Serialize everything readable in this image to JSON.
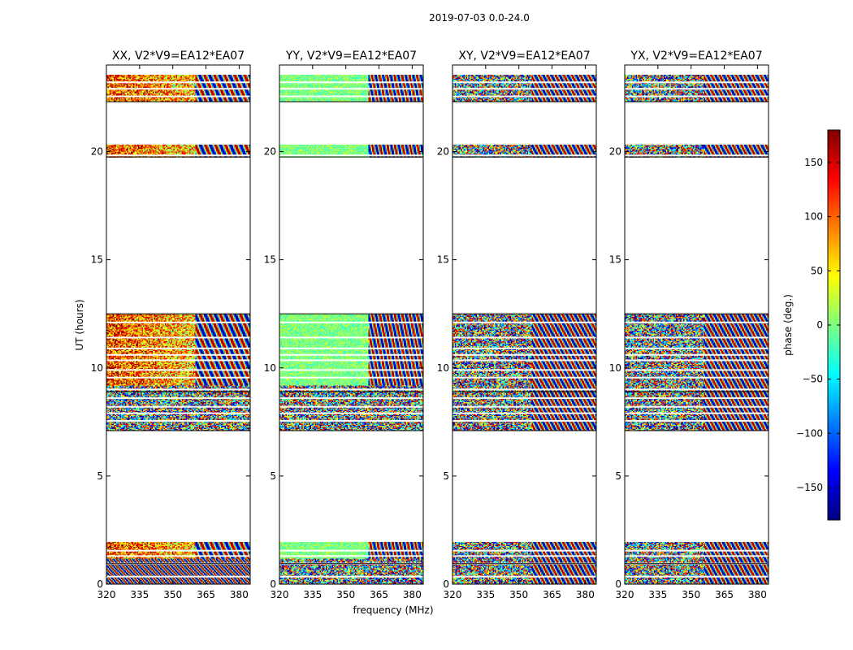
{
  "chart_data": {
    "type": "heatmap",
    "suptitle": "2019-07-03 0.0-24.0",
    "xlabel": "frequency (MHz)",
    "ylabel": "UT (hours)",
    "xlim": [
      320,
      385
    ],
    "ylim": [
      0,
      24
    ],
    "xticks": [
      320,
      335,
      350,
      365,
      380
    ],
    "yticks": [
      0,
      5,
      10,
      15,
      20
    ],
    "colorbar": {
      "label": "phase (deg.)",
      "range": [
        -180,
        180
      ],
      "ticks": [
        -150,
        -100,
        -50,
        0,
        50,
        100,
        150
      ],
      "colormap": "jet",
      "colors": [
        "#00007f",
        "#0000ff",
        "#007fff",
        "#00ffff",
        "#7fff7f",
        "#ffff00",
        "#ff7f00",
        "#ff0000",
        "#7f0000"
      ]
    },
    "time_blocks_hours": [
      [
        0.0,
        1.95
      ],
      [
        7.1,
        12.5
      ],
      [
        19.75,
        20.3
      ],
      [
        22.3,
        23.55
      ]
    ],
    "panels": [
      {
        "title": "XX, V2*V9=EA12*EA07",
        "pol": "XX"
      },
      {
        "title": "YY, V2*V9=EA12*EA07",
        "pol": "YY"
      },
      {
        "title": "XY, V2*V9=EA12*EA07",
        "pol": "XY"
      },
      {
        "title": "YX, V2*V9=EA12*EA07",
        "pol": "YX"
      }
    ]
  }
}
